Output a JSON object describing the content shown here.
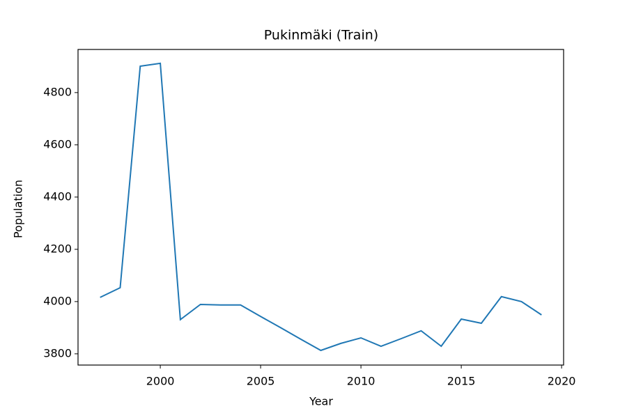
{
  "chart_data": {
    "type": "line",
    "title": "Pukinmäki (Train)",
    "x_label": "Year",
    "y_label": "Population",
    "x": [
      1997,
      1998,
      1999,
      2000,
      2001,
      2002,
      2003,
      2004,
      2005,
      2006,
      2007,
      2008,
      2009,
      2010,
      2011,
      2012,
      2013,
      2014,
      2015,
      2016,
      2017,
      2018,
      2019
    ],
    "values": [
      4016,
      4053,
      4901,
      4912,
      3931,
      3989,
      3987,
      3987,
      3943,
      3900,
      3856,
      3813,
      3840,
      3861,
      3829,
      3858,
      3888,
      3829,
      3933,
      3917,
      4019,
      4000,
      3949
    ],
    "color": "#1f77b4",
    "xlim": [
      1995.9,
      2020.1
    ],
    "xticks": [
      2000,
      2005,
      2010,
      2015,
      2020
    ],
    "ylim": [
      3757,
      4965
    ],
    "yticks": [
      3800,
      4000,
      4200,
      4400,
      4600,
      4800
    ],
    "grid": false
  }
}
